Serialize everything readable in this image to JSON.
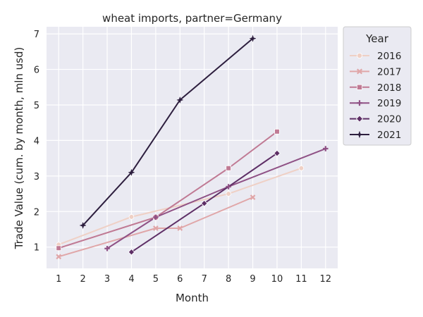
{
  "chart_data": {
    "type": "line",
    "title": "wheat imports, partner=Germany",
    "xlabel": "Month",
    "ylabel": "Trade Value (cum. by month, mln usd)",
    "x_ticks": [
      1,
      2,
      3,
      4,
      5,
      6,
      7,
      8,
      9,
      10,
      11,
      12
    ],
    "y_ticks": [
      1,
      2,
      3,
      4,
      5,
      6,
      7
    ],
    "xlim": [
      0.5,
      12.5
    ],
    "ylim": [
      0.4,
      7.2
    ],
    "grid": true,
    "legend": {
      "title": "Year",
      "placement": "outside-right"
    },
    "series": [
      {
        "name": "2016",
        "color": "#efd0c5",
        "marker": "circle",
        "points": [
          [
            1,
            1.07
          ],
          [
            4,
            1.85
          ],
          [
            8,
            2.5
          ],
          [
            11,
            3.22
          ]
        ]
      },
      {
        "name": "2017",
        "color": "#e0a6a8",
        "marker": "x",
        "points": [
          [
            1,
            0.73
          ],
          [
            5,
            1.53
          ],
          [
            6,
            1.53
          ],
          [
            9,
            2.4
          ]
        ]
      },
      {
        "name": "2018",
        "color": "#c07a94",
        "marker": "square",
        "points": [
          [
            1,
            0.97
          ],
          [
            5,
            1.84
          ],
          [
            8,
            3.22
          ],
          [
            10,
            4.25
          ]
        ]
      },
      {
        "name": "2019",
        "color": "#8f5185",
        "marker": "plus",
        "points": [
          [
            3,
            0.96
          ],
          [
            5,
            1.84
          ],
          [
            8,
            2.7
          ],
          [
            12,
            3.77
          ]
        ]
      },
      {
        "name": "2020",
        "color": "#5e2f66",
        "marker": "diamond",
        "points": [
          [
            4,
            0.86
          ],
          [
            7,
            2.23
          ],
          [
            10,
            3.64
          ]
        ]
      },
      {
        "name": "2021",
        "color": "#2d1e3e",
        "marker": "star",
        "points": [
          [
            2,
            1.61
          ],
          [
            4,
            3.1
          ],
          [
            6,
            5.14
          ],
          [
            9,
            6.87
          ]
        ]
      }
    ]
  }
}
